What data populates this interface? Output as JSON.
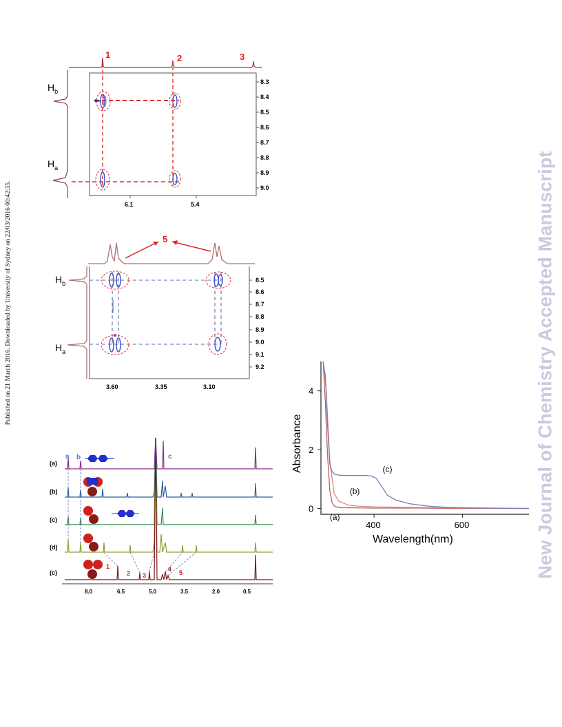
{
  "page": {
    "publication_line": "Published on 21 March 2016. Downloaded by University of Sydney on 22/03/2016 00:42:35.",
    "watermark": "New Journal of Chemistry Accepted Manuscript"
  },
  "figures": {
    "panel_top_2d": {
      "peak_labels": [
        "1",
        "2",
        "3"
      ],
      "proton_labels": {
        "hb_main": "H",
        "hb_sub": "b",
        "ha_main": "H",
        "ha_sub": "a"
      },
      "y_ticks": [
        "8.3",
        "8.4",
        "8.5",
        "8.6",
        "8.7",
        "8.8",
        "8.9",
        "9.0"
      ],
      "x_ticks": [
        "6.1",
        "5.4"
      ]
    },
    "panel_mid_2d": {
      "peak_label": "5",
      "proton_labels": {
        "hb_main": "H",
        "hb_sub": "b",
        "ha_main": "H",
        "ha_sub": "a"
      },
      "y_ticks": [
        "8.5",
        "8.6",
        "8.7",
        "8.8",
        "8.9",
        "9.0",
        "9.1",
        "9.2"
      ],
      "x_ticks": [
        "3.60",
        "3.35",
        "3.10"
      ]
    },
    "panel_nmr_stack": {
      "trace_labels": [
        "(a)",
        "(b)",
        "(c)",
        "(d)",
        "(c)"
      ],
      "proton_letters": {
        "a": "a",
        "b": "b",
        "c": "c"
      },
      "peak_numbers": [
        "1",
        "2",
        "3",
        "4",
        "5"
      ],
      "x_ticks": [
        "8.0",
        "6.5",
        "5.0",
        "3.5",
        "2.0",
        "0.5"
      ],
      "colors": [
        "#8a2a8a",
        "#2c5fa0",
        "#2e8a4a",
        "#8aa030",
        "#7a1a1a"
      ]
    }
  },
  "chart_data": {
    "type": "line",
    "xlabel": "Wavelength(nm)",
    "ylabel": "Absorbance",
    "xlim": [
      280,
      750
    ],
    "ylim": [
      -0.2,
      5
    ],
    "x_ticks": [
      400,
      600
    ],
    "y_ticks": [
      0,
      2,
      4
    ],
    "grid": false,
    "series": [
      {
        "name": "(a)",
        "color": "#c06060",
        "x": [
          285,
          290,
          295,
          300,
          305,
          310,
          320,
          340,
          400,
          500,
          600,
          750
        ],
        "y": [
          5.0,
          3.6,
          1.8,
          0.6,
          0.2,
          0.08,
          0.03,
          0.02,
          0.01,
          0.01,
          0.0,
          0.0
        ]
      },
      {
        "name": "(b)",
        "color": "#d08a8a",
        "x": [
          285,
          292,
          300,
          310,
          320,
          340,
          360,
          400,
          450,
          500,
          600,
          750
        ],
        "y": [
          5.0,
          4.0,
          1.6,
          0.5,
          0.25,
          0.12,
          0.08,
          0.05,
          0.04,
          0.03,
          0.02,
          0.0
        ]
      },
      {
        "name": "(c)",
        "color": "#7a7ab8",
        "x": [
          285,
          290,
          295,
          300,
          305,
          310,
          320,
          340,
          360,
          380,
          395,
          405,
          415,
          430,
          450,
          480,
          520,
          560,
          600,
          650,
          700,
          750
        ],
        "y": [
          5.0,
          4.5,
          2.8,
          1.5,
          1.25,
          1.17,
          1.13,
          1.12,
          1.12,
          1.12,
          1.1,
          1.02,
          0.8,
          0.45,
          0.28,
          0.16,
          0.08,
          0.04,
          0.02,
          0.01,
          0.0,
          0.0
        ]
      }
    ]
  }
}
